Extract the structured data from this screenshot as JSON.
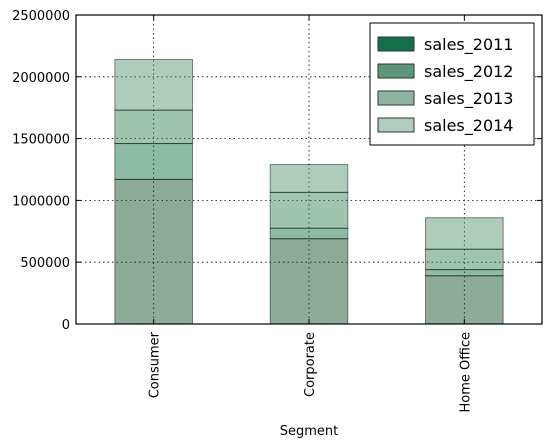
{
  "chart_data": {
    "type": "bar",
    "stacked": true,
    "title": "",
    "xlabel": "Segment",
    "ylabel": "",
    "categories": [
      "Consumer",
      "Corporate",
      "Home Office"
    ],
    "ylim": [
      0,
      2500000
    ],
    "yticks": [
      0,
      500000,
      1000000,
      1500000,
      2000000,
      2500000
    ],
    "ytick_labels": [
      "0",
      "500000",
      "1000000",
      "1500000",
      "2000000",
      "2500000"
    ],
    "grid": true,
    "legend_position": "top-right",
    "series": [
      {
        "name": "sales_2011",
        "values": [
          1170000,
          690000,
          390000
        ],
        "color": "#00441b"
      },
      {
        "name": "sales_2012",
        "values": [
          290000,
          85000,
          50000
        ],
        "color": "#006837"
      },
      {
        "name": "sales_2013",
        "values": [
          270000,
          290000,
          165000
        ],
        "color": "#2f7d52"
      },
      {
        "name": "sales_2014",
        "values": [
          410000,
          225000,
          255000
        ],
        "color": "#4a8f68"
      }
    ],
    "legend_colors": [
      "#14704a",
      "#5b977a",
      "#8db4a0",
      "#b1cdbf"
    ],
    "bar_alpha": 0.45
  }
}
